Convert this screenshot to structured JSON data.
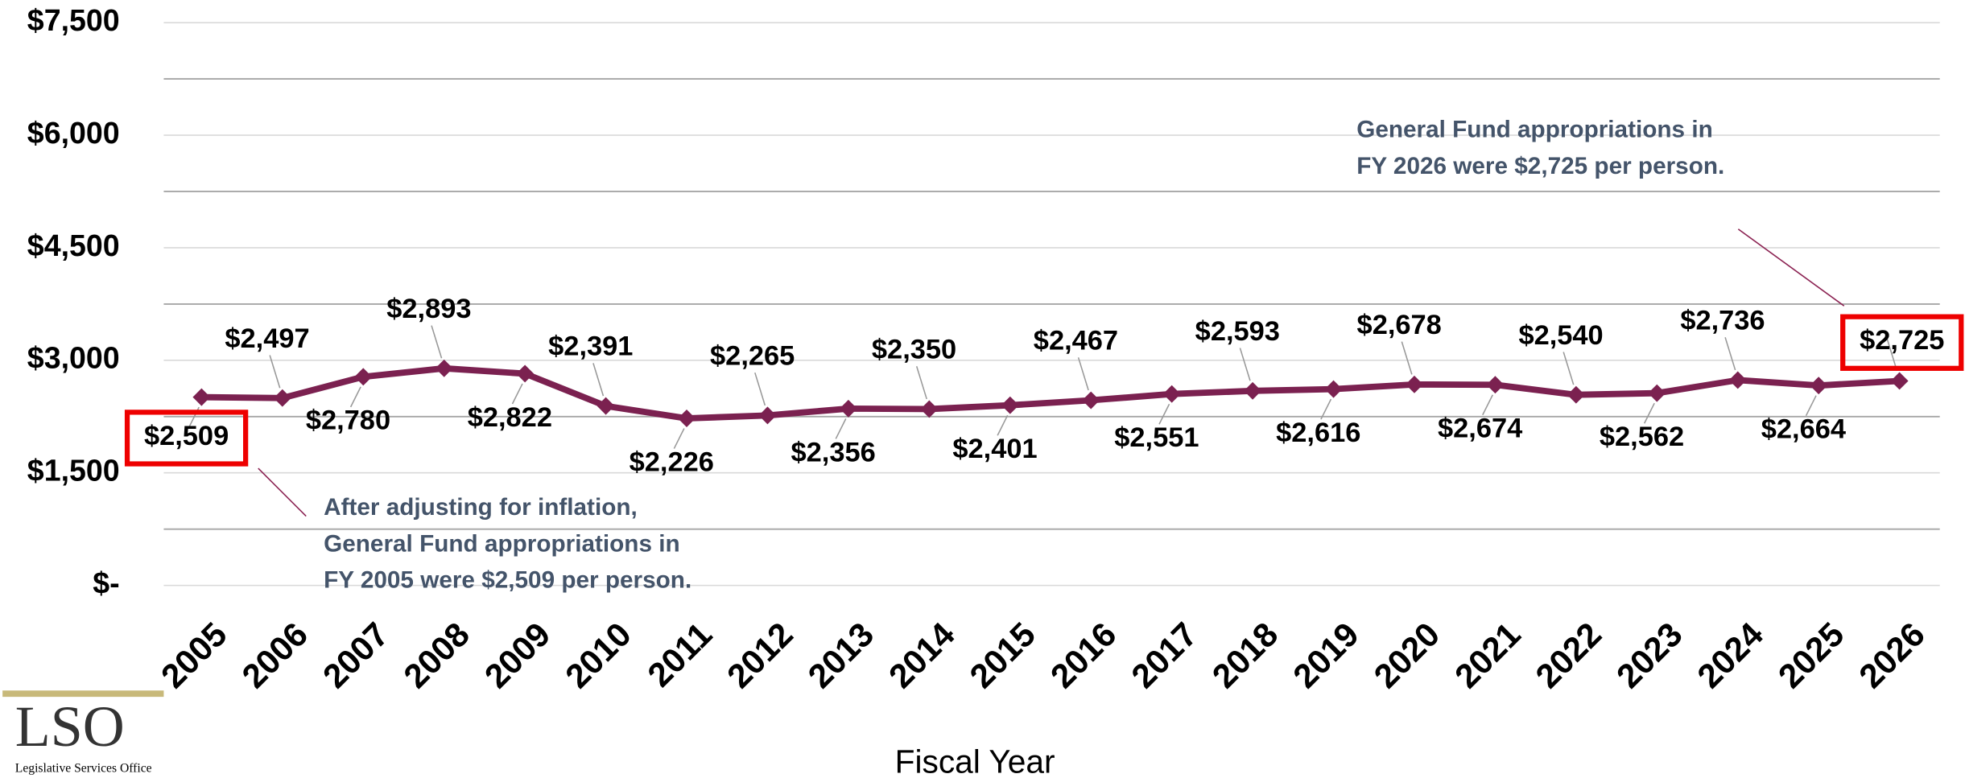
{
  "chart_data": {
    "type": "line",
    "x_label": "Fiscal Year",
    "categories": [
      "2005",
      "2006",
      "2007",
      "2008",
      "2009",
      "2010",
      "2011",
      "2012",
      "2013",
      "2014",
      "2015",
      "2016",
      "2017",
      "2018",
      "2019",
      "2020",
      "2021",
      "2022",
      "2023",
      "2024",
      "2025",
      "2026"
    ],
    "series": [
      {
        "name": "General Fund appropriations per person",
        "color": "#7b2150",
        "values": [
          2509,
          2497,
          2780,
          2893,
          2822,
          2391,
          2226,
          2265,
          2356,
          2350,
          2401,
          2467,
          2551,
          2593,
          2616,
          2678,
          2674,
          2540,
          2562,
          2736,
          2664,
          2725
        ],
        "value_labels": [
          "$2,509",
          "$2,497",
          "$2,780",
          "$2,893",
          "$2,822",
          "$2,391",
          "$2,226",
          "$2,265",
          "$2,356",
          "$2,350",
          "$2,401",
          "$2,467",
          "$2,551",
          "$2,593",
          "$2,616",
          "$2,678",
          "$2,674",
          "$2,540",
          "$2,562",
          "$2,736",
          "$2,664",
          "$2,725"
        ]
      }
    ],
    "ylim": [
      0,
      7500
    ],
    "yticks": [
      {
        "value": 0,
        "label": "$-"
      },
      {
        "value": 1500,
        "label": "$1,500"
      },
      {
        "value": 3000,
        "label": "$3,000"
      },
      {
        "value": 4500,
        "label": "$4,500"
      },
      {
        "value": 6000,
        "label": "$6,000"
      },
      {
        "value": 7500,
        "label": "$7,500"
      }
    ],
    "yminorticks": [
      750,
      2250,
      3750,
      5250,
      6750
    ],
    "grid": true,
    "annotations": [
      {
        "lines": [
          "After adjusting for inflation,",
          "General Fund appropriations in",
          "FY 2005 were $2,509 per person."
        ]
      },
      {
        "lines": [
          "General Fund appropriations in",
          "FY 2026 were $2,725 per person."
        ]
      }
    ]
  },
  "logo": {
    "text": "LSO",
    "subtitle": "Legislative Services Office"
  }
}
